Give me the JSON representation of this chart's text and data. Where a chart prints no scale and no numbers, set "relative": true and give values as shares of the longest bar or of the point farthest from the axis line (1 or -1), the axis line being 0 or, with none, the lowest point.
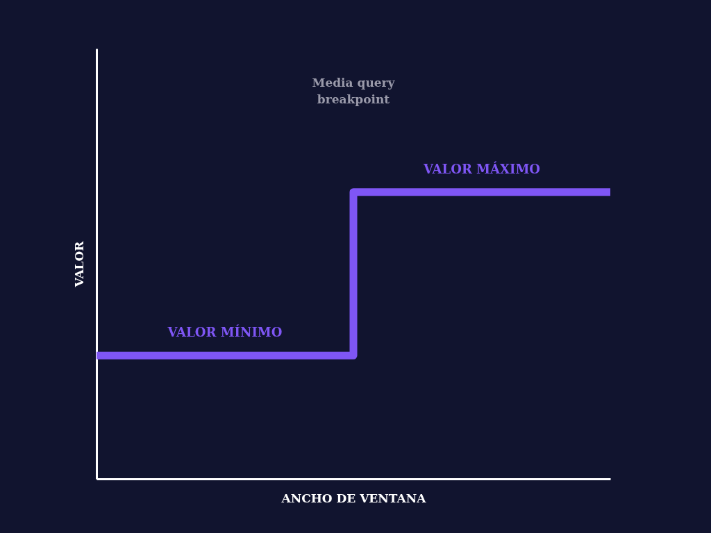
{
  "chart_data": {
    "type": "step",
    "xlabel": "ANCHO DE VENTANA",
    "ylabel": "VALOR",
    "relative": true,
    "categories": [
      null,
      null,
      null
    ],
    "series": [
      {
        "color": "#7f56f5",
        "values": [
          0.43,
          1,
          1
        ]
      }
    ],
    "annotations": [
      {
        "text": "VALOR MÍNIMO",
        "y": 0.43
      },
      {
        "text": "VALOR MÁXIMO",
        "y": 1
      },
      "Media query breakpoint"
    ],
    "legend": false
  }
}
